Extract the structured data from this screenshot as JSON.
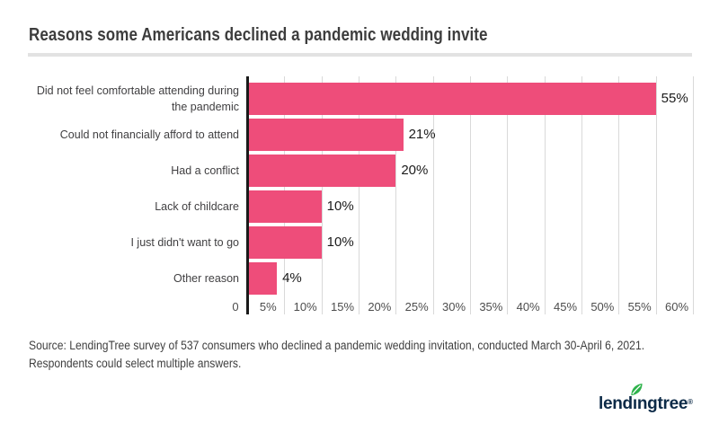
{
  "title": "Reasons some Americans declined a pandemic wedding invite",
  "chart_data": {
    "type": "bar",
    "orientation": "horizontal",
    "title": "Reasons some Americans declined a pandemic wedding invite",
    "categories": [
      "Did not feel comfortable attending during\nthe pandemic",
      "Could not financially afford to attend",
      "Had a conflict",
      "Lack of childcare",
      "I just didn't want to go",
      "Other reason"
    ],
    "values": [
      55,
      21,
      20,
      10,
      10,
      4
    ],
    "value_labels": [
      "55%",
      "21%",
      "20%",
      "10%",
      "10%",
      "4%"
    ],
    "x_tick_labels": [
      "0",
      "5%",
      "10%",
      "15%",
      "20%",
      "25%",
      "30%",
      "35%",
      "40%",
      "45%",
      "50%",
      "55%",
      "60%"
    ],
    "x_tick_values": [
      0,
      5,
      10,
      15,
      20,
      25,
      30,
      35,
      40,
      45,
      50,
      55,
      60
    ],
    "xlim": [
      0,
      60
    ],
    "grid": true,
    "legend": "none",
    "bar_color": "#ee4d7a"
  },
  "source": {
    "line1": "Source: LendingTree survey of 537 consumers who declined a pandemic wedding invitation, conducted March 30-April 6, 2021.",
    "line2": "Respondents could select multiple answers."
  },
  "logo": {
    "pre": "lend",
    "dotless_i": "ı",
    "post": "ngtree",
    "mark": "®"
  },
  "colors": {
    "bar": "#ee4d7a",
    "axis": "#1a1a1a",
    "gridline": "#d9d9d9",
    "logo_navy": "#0c2a47",
    "leaf_green": "#2fb34c"
  }
}
